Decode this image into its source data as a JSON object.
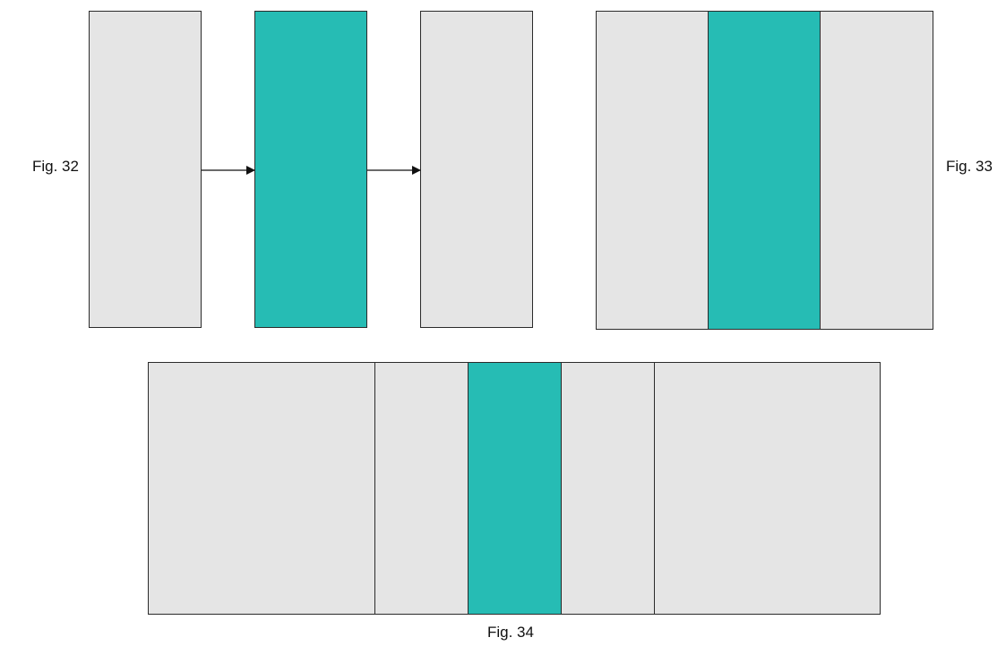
{
  "colors": {
    "grey_panel": "#e5e5e5",
    "teal_panel": "#26bcb4",
    "border": "#2b2b2b",
    "arrow": "#111111"
  },
  "figures": [
    {
      "label": "Fig. 32",
      "panels": [
        "grey",
        "teal",
        "grey"
      ],
      "connectors": "arrows between panels, left to right"
    },
    {
      "label": "Fig. 33",
      "panels": [
        "grey",
        "teal",
        "grey"
      ]
    },
    {
      "label": "Fig. 34",
      "panels": [
        "grey",
        "grey",
        "teal",
        "grey",
        "grey"
      ]
    }
  ]
}
